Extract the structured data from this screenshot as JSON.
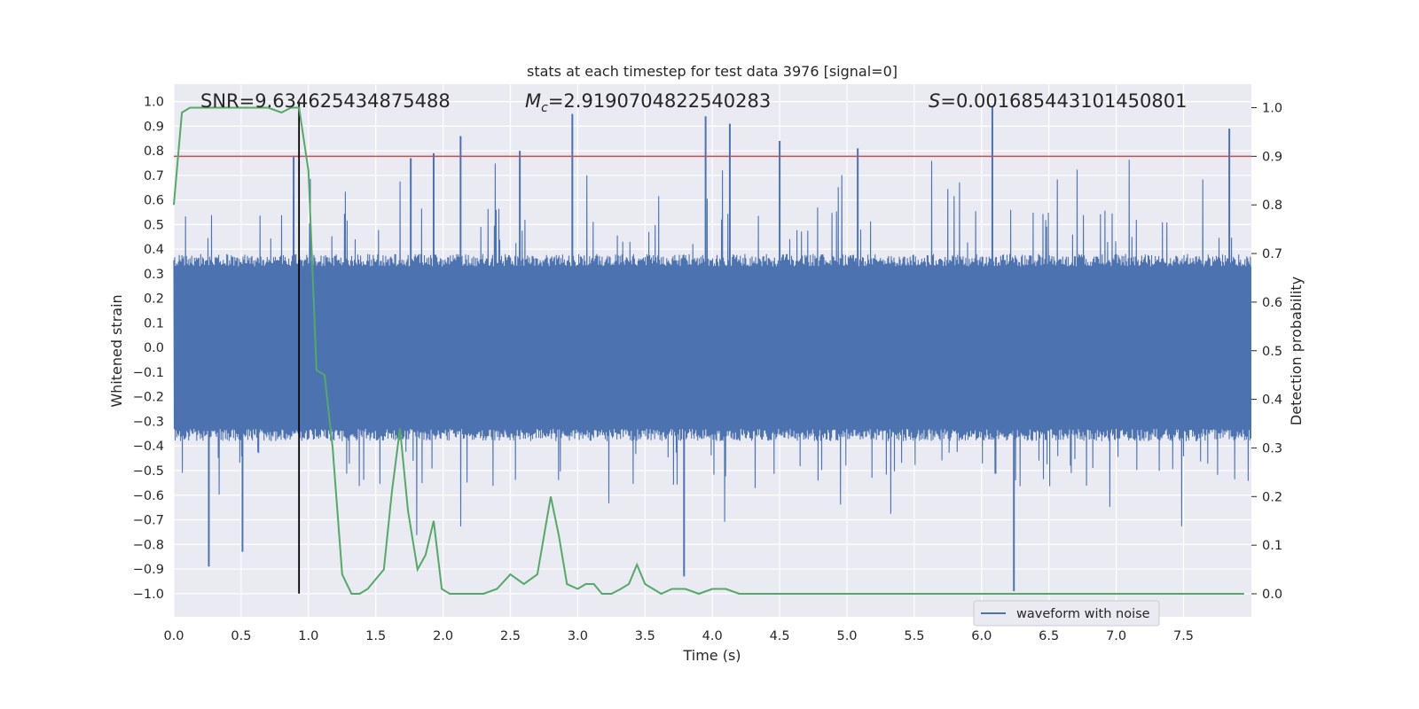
{
  "chart_data": {
    "type": "line",
    "title": "stats at each timestep for test data 3976 [signal=0]",
    "xlabel": "Time (s)",
    "ylabel_left": "Whitened strain",
    "ylabel_right": "Detection probability",
    "xlim": [
      0.0,
      8.0
    ],
    "ylim_left": [
      -1.1,
      1.05
    ],
    "ylim_right": [
      -0.05,
      1.03
    ],
    "xticks": [
      "0.0",
      "0.5",
      "1.0",
      "1.5",
      "2.0",
      "2.5",
      "3.0",
      "3.5",
      "4.0",
      "4.5",
      "5.0",
      "5.5",
      "6.0",
      "6.5",
      "7.0",
      "7.5"
    ],
    "yticks_left": [
      "1.0",
      "0.9",
      "0.8",
      "0.7",
      "0.6",
      "0.5",
      "0.4",
      "0.3",
      "0.2",
      "0.1",
      "0.0",
      "−0.1",
      "−0.2",
      "−0.3",
      "−0.4",
      "−0.5",
      "−0.6",
      "−0.7",
      "−0.8",
      "−0.9",
      "−1.0"
    ],
    "yticks_right": [
      "1.0",
      "0.9",
      "0.8",
      "0.7",
      "0.6",
      "0.5",
      "0.4",
      "0.3",
      "0.2",
      "0.1",
      "0.0"
    ],
    "grid": true,
    "legend_position": "bottom-right",
    "annotations": {
      "snr": "SNR=9.634625434875488",
      "mc_symbol": "M",
      "mc_sub": "c",
      "mc_value": "=2.9190704822540283",
      "s_symbol": "S",
      "s_value": "=0.001685443101450801"
    },
    "series": [
      {
        "name": "waveform with noise",
        "axis": "left",
        "color": "#4c72b0",
        "description_of_values": "noisy whitened strain, bulk amplitude roughly ±0.35 with spikes to ±0.97",
        "peaks": [
          {
            "x": 0.26,
            "y": -0.89
          },
          {
            "x": 0.51,
            "y": -0.83
          },
          {
            "x": 0.89,
            "y": 0.78
          },
          {
            "x": 1.76,
            "y": 0.77
          },
          {
            "x": 1.93,
            "y": 0.79
          },
          {
            "x": 2.13,
            "y": 0.86
          },
          {
            "x": 2.57,
            "y": 0.8
          },
          {
            "x": 2.96,
            "y": 0.95
          },
          {
            "x": 3.79,
            "y": -0.93
          },
          {
            "x": 3.95,
            "y": 0.94
          },
          {
            "x": 4.13,
            "y": 0.91
          },
          {
            "x": 4.5,
            "y": 0.84
          },
          {
            "x": 5.08,
            "y": 0.81
          },
          {
            "x": 6.08,
            "y": 0.98
          },
          {
            "x": 6.24,
            "y": -0.99
          },
          {
            "x": 7.84,
            "y": 0.89
          }
        ]
      },
      {
        "name": "",
        "axis": "right",
        "color": "#55a868",
        "x": [
          0.0,
          0.06,
          0.12,
          0.2,
          0.3,
          0.4,
          0.5,
          0.6,
          0.7,
          0.8,
          0.87,
          0.93,
          1.0,
          1.06,
          1.12,
          1.18,
          1.25,
          1.32,
          1.38,
          1.44,
          1.5,
          1.56,
          1.62,
          1.68,
          1.74,
          1.81,
          1.87,
          1.93,
          1.99,
          2.05,
          2.12,
          2.2,
          2.3,
          2.4,
          2.5,
          2.6,
          2.7,
          2.8,
          2.86,
          2.92,
          3.0,
          3.06,
          3.12,
          3.18,
          3.25,
          3.32,
          3.38,
          3.44,
          3.5,
          3.56,
          3.62,
          3.7,
          3.8,
          3.9,
          4.0,
          4.1,
          4.2,
          4.4,
          4.6,
          4.8,
          5.0,
          5.2,
          5.4,
          5.6,
          5.8,
          6.0,
          6.2,
          6.4,
          6.6,
          6.8,
          7.0,
          7.2,
          7.4,
          7.6,
          7.8,
          7.95
        ],
        "y": [
          0.8,
          0.99,
          1.0,
          1.0,
          1.0,
          1.0,
          1.0,
          1.0,
          1.0,
          0.99,
          1.0,
          1.0,
          0.87,
          0.46,
          0.45,
          0.3,
          0.04,
          0.0,
          0.0,
          0.01,
          0.03,
          0.05,
          0.21,
          0.34,
          0.17,
          0.05,
          0.08,
          0.15,
          0.01,
          0.0,
          0.0,
          0.0,
          0.0,
          0.01,
          0.04,
          0.02,
          0.04,
          0.2,
          0.12,
          0.02,
          0.01,
          0.02,
          0.02,
          0.0,
          0.0,
          0.01,
          0.02,
          0.06,
          0.02,
          0.01,
          0.0,
          0.01,
          0.01,
          0.0,
          0.01,
          0.01,
          0.0,
          0.0,
          0.0,
          0.0,
          0.0,
          0.0,
          0.0,
          0.0,
          0.0,
          0.0,
          0.0,
          0.0,
          0.0,
          0.0,
          0.0,
          0.0,
          0.0,
          0.0,
          0.0,
          0.0
        ]
      }
    ],
    "threshold_line": {
      "axis": "right",
      "y": 0.9,
      "color": "#c44e52"
    },
    "marker_line": {
      "axis": "left",
      "x": 0.93,
      "y_from": -1.0,
      "y_to": 1.0,
      "color": "#000000"
    }
  }
}
